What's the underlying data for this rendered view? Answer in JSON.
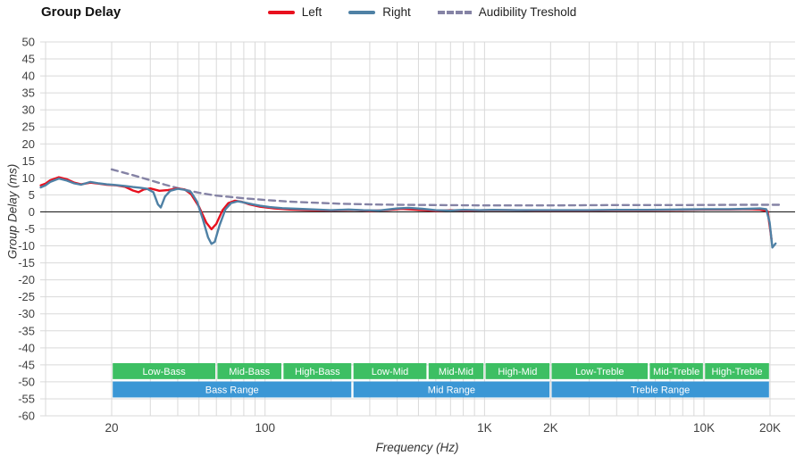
{
  "title": "Group Delay",
  "legend": [
    {
      "label": "Left",
      "color": "#e8101e",
      "style": "solid"
    },
    {
      "label": "Right",
      "color": "#4f81a5",
      "style": "solid"
    },
    {
      "label": "Audibility Treshold",
      "color": "#8583a5",
      "style": "dashed"
    }
  ],
  "chart_data": {
    "type": "line",
    "title": "Group Delay",
    "xlabel": "Frequency (Hz)",
    "ylabel": "Group Delay (ms)",
    "x_scale": "log",
    "xlim": [
      9.45,
      26000
    ],
    "ylim": [
      -60,
      50
    ],
    "ytick_step": 5,
    "grid": true,
    "grid_color": "#d9d9d9",
    "zero_line_color": "#222222",
    "tick_label_color": "#404040",
    "xticks": [
      {
        "f": 20,
        "label": "20"
      },
      {
        "f": 100,
        "label": "100"
      },
      {
        "f": 1000,
        "label": "1K"
      },
      {
        "f": 2000,
        "label": "2K"
      },
      {
        "f": 10000,
        "label": "10K"
      },
      {
        "f": 20000,
        "label": "20K"
      }
    ],
    "series": [
      {
        "name": "Left",
        "color": "#e8101e",
        "dash": null,
        "width": 2.4,
        "points": [
          [
            9.5,
            7.8
          ],
          [
            10,
            8.3
          ],
          [
            10.5,
            9.3
          ],
          [
            11.5,
            10.2
          ],
          [
            12.5,
            9.6
          ],
          [
            13.5,
            8.6
          ],
          [
            14.5,
            8.1
          ],
          [
            16,
            8.6
          ],
          [
            17.5,
            8.3
          ],
          [
            19,
            8.0
          ],
          [
            21,
            7.8
          ],
          [
            23,
            7.4
          ],
          [
            25,
            6.3
          ],
          [
            26.5,
            5.8
          ],
          [
            28,
            6.6
          ],
          [
            30,
            6.9
          ],
          [
            33,
            6.2
          ],
          [
            36,
            6.4
          ],
          [
            40,
            6.9
          ],
          [
            43,
            6.6
          ],
          [
            46,
            5.2
          ],
          [
            50,
            1.5
          ],
          [
            54,
            -3.2
          ],
          [
            57,
            -5.1
          ],
          [
            60,
            -3.5
          ],
          [
            64,
            0.5
          ],
          [
            68,
            2.6
          ],
          [
            73,
            3.3
          ],
          [
            78,
            3.0
          ],
          [
            85,
            2.2
          ],
          [
            95,
            1.5
          ],
          [
            110,
            1.0
          ],
          [
            130,
            0.7
          ],
          [
            160,
            0.5
          ],
          [
            200,
            0.4
          ],
          [
            250,
            0.6
          ],
          [
            300,
            0.3
          ],
          [
            350,
            0.5
          ],
          [
            420,
            0.9
          ],
          [
            500,
            0.6
          ],
          [
            600,
            0.3
          ],
          [
            700,
            0.5
          ],
          [
            850,
            0.4
          ],
          [
            1000,
            0.5
          ],
          [
            1300,
            0.5
          ],
          [
            1700,
            0.4
          ],
          [
            2200,
            0.4
          ],
          [
            3000,
            0.4
          ],
          [
            4000,
            0.5
          ],
          [
            5500,
            0.5
          ],
          [
            7500,
            0.6
          ],
          [
            10000,
            0.7
          ],
          [
            13000,
            0.7
          ],
          [
            16000,
            0.8
          ],
          [
            18000,
            0.7
          ],
          [
            19500,
            0.2
          ],
          [
            20300,
            -8.0
          ]
        ]
      },
      {
        "name": "Right",
        "color": "#4f81a5",
        "dash": null,
        "width": 2.4,
        "points": [
          [
            9.5,
            7.2
          ],
          [
            10,
            7.8
          ],
          [
            10.5,
            8.8
          ],
          [
            11.5,
            9.8
          ],
          [
            12.5,
            9.2
          ],
          [
            13.5,
            8.4
          ],
          [
            14.5,
            8.0
          ],
          [
            16,
            8.8
          ],
          [
            17.5,
            8.4
          ],
          [
            19,
            8.1
          ],
          [
            21,
            7.9
          ],
          [
            23,
            7.6
          ],
          [
            25,
            7.3
          ],
          [
            27,
            7.1
          ],
          [
            29,
            6.8
          ],
          [
            31,
            5.8
          ],
          [
            32.5,
            2.2
          ],
          [
            33.5,
            1.3
          ],
          [
            35,
            4.5
          ],
          [
            37,
            6.2
          ],
          [
            40,
            6.8
          ],
          [
            43,
            6.5
          ],
          [
            46,
            5.8
          ],
          [
            49,
            3.0
          ],
          [
            52,
            -2.0
          ],
          [
            55,
            -7.5
          ],
          [
            57,
            -9.4
          ],
          [
            59,
            -8.8
          ],
          [
            62,
            -4.0
          ],
          [
            66,
            0.8
          ],
          [
            70,
            2.6
          ],
          [
            75,
            3.1
          ],
          [
            80,
            2.8
          ],
          [
            88,
            2.2
          ],
          [
            95,
            1.8
          ],
          [
            105,
            1.4
          ],
          [
            120,
            1.1
          ],
          [
            140,
            0.9
          ],
          [
            170,
            0.7
          ],
          [
            200,
            0.5
          ],
          [
            240,
            0.7
          ],
          [
            280,
            0.5
          ],
          [
            330,
            0.4
          ],
          [
            400,
            1.0
          ],
          [
            450,
            1.2
          ],
          [
            520,
            0.9
          ],
          [
            600,
            0.5
          ],
          [
            700,
            0.4
          ],
          [
            800,
            0.6
          ],
          [
            950,
            0.5
          ],
          [
            1100,
            0.6
          ],
          [
            1400,
            0.5
          ],
          [
            1800,
            0.5
          ],
          [
            2300,
            0.5
          ],
          [
            3000,
            0.5
          ],
          [
            4000,
            0.6
          ],
          [
            5500,
            0.6
          ],
          [
            7500,
            0.7
          ],
          [
            10000,
            0.8
          ],
          [
            13000,
            0.8
          ],
          [
            16000,
            0.9
          ],
          [
            18000,
            1.0
          ],
          [
            19200,
            0.8
          ],
          [
            19900,
            -3.0
          ],
          [
            20500,
            -10.5
          ],
          [
            21200,
            -9.3
          ]
        ]
      },
      {
        "name": "Audibility Treshold",
        "color": "#8583a5",
        "dash": [
          7,
          5
        ],
        "width": 2.4,
        "points": [
          [
            20,
            12.5
          ],
          [
            25,
            10.8
          ],
          [
            30,
            9.3
          ],
          [
            35,
            8.0
          ],
          [
            40,
            7.0
          ],
          [
            50,
            5.6
          ],
          [
            60,
            4.8
          ],
          [
            80,
            4.0
          ],
          [
            100,
            3.5
          ],
          [
            130,
            3.0
          ],
          [
            170,
            2.7
          ],
          [
            220,
            2.4
          ],
          [
            300,
            2.2
          ],
          [
            400,
            2.1
          ],
          [
            600,
            2.0
          ],
          [
            1000,
            1.9
          ],
          [
            2000,
            1.9
          ],
          [
            4000,
            2.0
          ],
          [
            8000,
            2.0
          ],
          [
            15000,
            2.1
          ],
          [
            22000,
            2.1
          ]
        ]
      }
    ],
    "bands": {
      "sub_color": "#3dbf63",
      "main_color": "#3b97d5",
      "label_color": "#ffffff",
      "sub_range": [
        -44.5,
        -49.2
      ],
      "main_range": [
        -49.9,
        -54.6
      ],
      "sub": [
        {
          "label": "Low-Bass",
          "from": 20,
          "to": 60
        },
        {
          "label": "Mid-Bass",
          "from": 60,
          "to": 120
        },
        {
          "label": "High-Bass",
          "from": 120,
          "to": 250
        },
        {
          "label": "Low-Mid",
          "from": 250,
          "to": 550
        },
        {
          "label": "Mid-Mid",
          "from": 550,
          "to": 1000
        },
        {
          "label": "High-Mid",
          "from": 1000,
          "to": 2000
        },
        {
          "label": "Low-Treble",
          "from": 2000,
          "to": 5600
        },
        {
          "label": "Mid-Treble",
          "from": 5600,
          "to": 10000
        },
        {
          "label": "High-Treble",
          "from": 10000,
          "to": 20000
        }
      ],
      "main": [
        {
          "label": "Bass Range",
          "from": 20,
          "to": 250
        },
        {
          "label": "Mid Range",
          "from": 250,
          "to": 2000
        },
        {
          "label": "Treble Range",
          "from": 2000,
          "to": 20000
        }
      ]
    }
  }
}
